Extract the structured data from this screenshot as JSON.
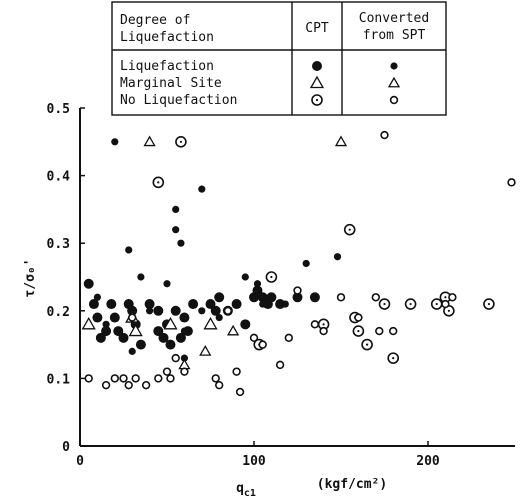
{
  "chart_data": {
    "type": "scatter",
    "xlabel": "q",
    "xlabel_sub": "c1",
    "xlabel_unit": "(kgf/cm²)",
    "ylabel": "τ/σ₀'",
    "xlim": [
      0,
      250
    ],
    "ylim": [
      0,
      0.5
    ],
    "x_ticks": [
      0,
      100,
      200
    ],
    "x_tick_labels": [
      "0",
      "100",
      "200"
    ],
    "y_ticks": [
      0,
      0.1,
      0.2,
      0.3,
      0.4,
      0.5
    ],
    "y_tick_labels": [
      "0",
      "0.1",
      "0.2",
      "0.3",
      "0.4",
      "0.5"
    ],
    "grid": false,
    "legend": {
      "placement": "top",
      "header_col1": "Degree of\nLiquefaction",
      "header_col2": "CPT",
      "header_col3": "Converted\nfrom SPT",
      "rows": [
        "Liquefaction",
        "Marginal Site",
        "No Liquefaction"
      ]
    },
    "series": [
      {
        "name": "Liquefaction",
        "method": "CPT",
        "marker": "filled-circle-large",
        "points": [
          [
            5,
            0.24
          ],
          [
            8,
            0.21
          ],
          [
            10,
            0.19
          ],
          [
            12,
            0.16
          ],
          [
            15,
            0.17
          ],
          [
            18,
            0.21
          ],
          [
            20,
            0.19
          ],
          [
            22,
            0.17
          ],
          [
            25,
            0.16
          ],
          [
            28,
            0.21
          ],
          [
            30,
            0.2
          ],
          [
            32,
            0.18
          ],
          [
            35,
            0.15
          ],
          [
            40,
            0.21
          ],
          [
            45,
            0.2
          ],
          [
            48,
            0.16
          ],
          [
            50,
            0.18
          ],
          [
            52,
            0.15
          ],
          [
            55,
            0.2
          ],
          [
            60,
            0.19
          ],
          [
            62,
            0.17
          ],
          [
            65,
            0.21
          ],
          [
            75,
            0.21
          ],
          [
            78,
            0.2
          ],
          [
            80,
            0.22
          ],
          [
            85,
            0.2
          ],
          [
            90,
            0.21
          ],
          [
            95,
            0.18
          ],
          [
            100,
            0.22
          ],
          [
            102,
            0.23
          ],
          [
            105,
            0.22
          ],
          [
            108,
            0.21
          ],
          [
            110,
            0.22
          ],
          [
            115,
            0.21
          ],
          [
            125,
            0.22
          ],
          [
            135,
            0.22
          ],
          [
            45,
            0.17
          ],
          [
            58,
            0.16
          ]
        ]
      },
      {
        "name": "Liquefaction",
        "method": "Converted from SPT",
        "marker": "filled-circle-small",
        "points": [
          [
            20,
            0.45
          ],
          [
            28,
            0.29
          ],
          [
            35,
            0.25
          ],
          [
            50,
            0.24
          ],
          [
            55,
            0.32
          ],
          [
            55,
            0.35
          ],
          [
            58,
            0.3
          ],
          [
            70,
            0.38
          ],
          [
            95,
            0.25
          ],
          [
            102,
            0.24
          ],
          [
            105,
            0.21
          ],
          [
            130,
            0.27
          ],
          [
            148,
            0.28
          ],
          [
            10,
            0.22
          ],
          [
            15,
            0.18
          ],
          [
            30,
            0.14
          ],
          [
            40,
            0.2
          ],
          [
            60,
            0.13
          ],
          [
            70,
            0.2
          ],
          [
            80,
            0.19
          ],
          [
            118,
            0.21
          ],
          [
            60,
            0.17
          ]
        ]
      },
      {
        "name": "Marginal Site",
        "method": "CPT",
        "marker": "open-triangle-large",
        "points": [
          [
            5,
            0.18
          ],
          [
            30,
            0.19
          ],
          [
            32,
            0.17
          ],
          [
            52,
            0.18
          ],
          [
            75,
            0.18
          ]
        ]
      },
      {
        "name": "Marginal Site",
        "method": "Converted from SPT",
        "marker": "open-triangle-small",
        "points": [
          [
            40,
            0.45
          ],
          [
            150,
            0.45
          ],
          [
            72,
            0.14
          ],
          [
            60,
            0.12
          ],
          [
            88,
            0.17
          ]
        ]
      },
      {
        "name": "No Liquefaction",
        "method": "CPT",
        "marker": "open-circle-dot",
        "points": [
          [
            45,
            0.39
          ],
          [
            58,
            0.45
          ],
          [
            103,
            0.15
          ],
          [
            110,
            0.25
          ],
          [
            140,
            0.18
          ],
          [
            155,
            0.32
          ],
          [
            158,
            0.19
          ],
          [
            160,
            0.17
          ],
          [
            165,
            0.15
          ],
          [
            175,
            0.21
          ],
          [
            180,
            0.13
          ],
          [
            190,
            0.21
          ],
          [
            205,
            0.21
          ],
          [
            210,
            0.22
          ],
          [
            212,
            0.2
          ],
          [
            235,
            0.21
          ]
        ]
      },
      {
        "name": "No Liquefaction",
        "method": "Converted from SPT",
        "marker": "open-circle-small",
        "points": [
          [
            5,
            0.1
          ],
          [
            15,
            0.09
          ],
          [
            20,
            0.1
          ],
          [
            25,
            0.1
          ],
          [
            28,
            0.09
          ],
          [
            32,
            0.1
          ],
          [
            38,
            0.09
          ],
          [
            45,
            0.1
          ],
          [
            50,
            0.11
          ],
          [
            52,
            0.1
          ],
          [
            55,
            0.13
          ],
          [
            78,
            0.1
          ],
          [
            80,
            0.09
          ],
          [
            85,
            0.2
          ],
          [
            90,
            0.11
          ],
          [
            92,
            0.08
          ],
          [
            100,
            0.16
          ],
          [
            105,
            0.15
          ],
          [
            115,
            0.12
          ],
          [
            125,
            0.23
          ],
          [
            135,
            0.18
          ],
          [
            140,
            0.17
          ],
          [
            150,
            0.22
          ],
          [
            160,
            0.19
          ],
          [
            170,
            0.22
          ],
          [
            172,
            0.17
          ],
          [
            175,
            0.46
          ],
          [
            180,
            0.17
          ],
          [
            210,
            0.21
          ],
          [
            214,
            0.22
          ],
          [
            248,
            0.39
          ],
          [
            120,
            0.16
          ],
          [
            60,
            0.11
          ],
          [
            30,
            0.19
          ]
        ]
      }
    ]
  }
}
